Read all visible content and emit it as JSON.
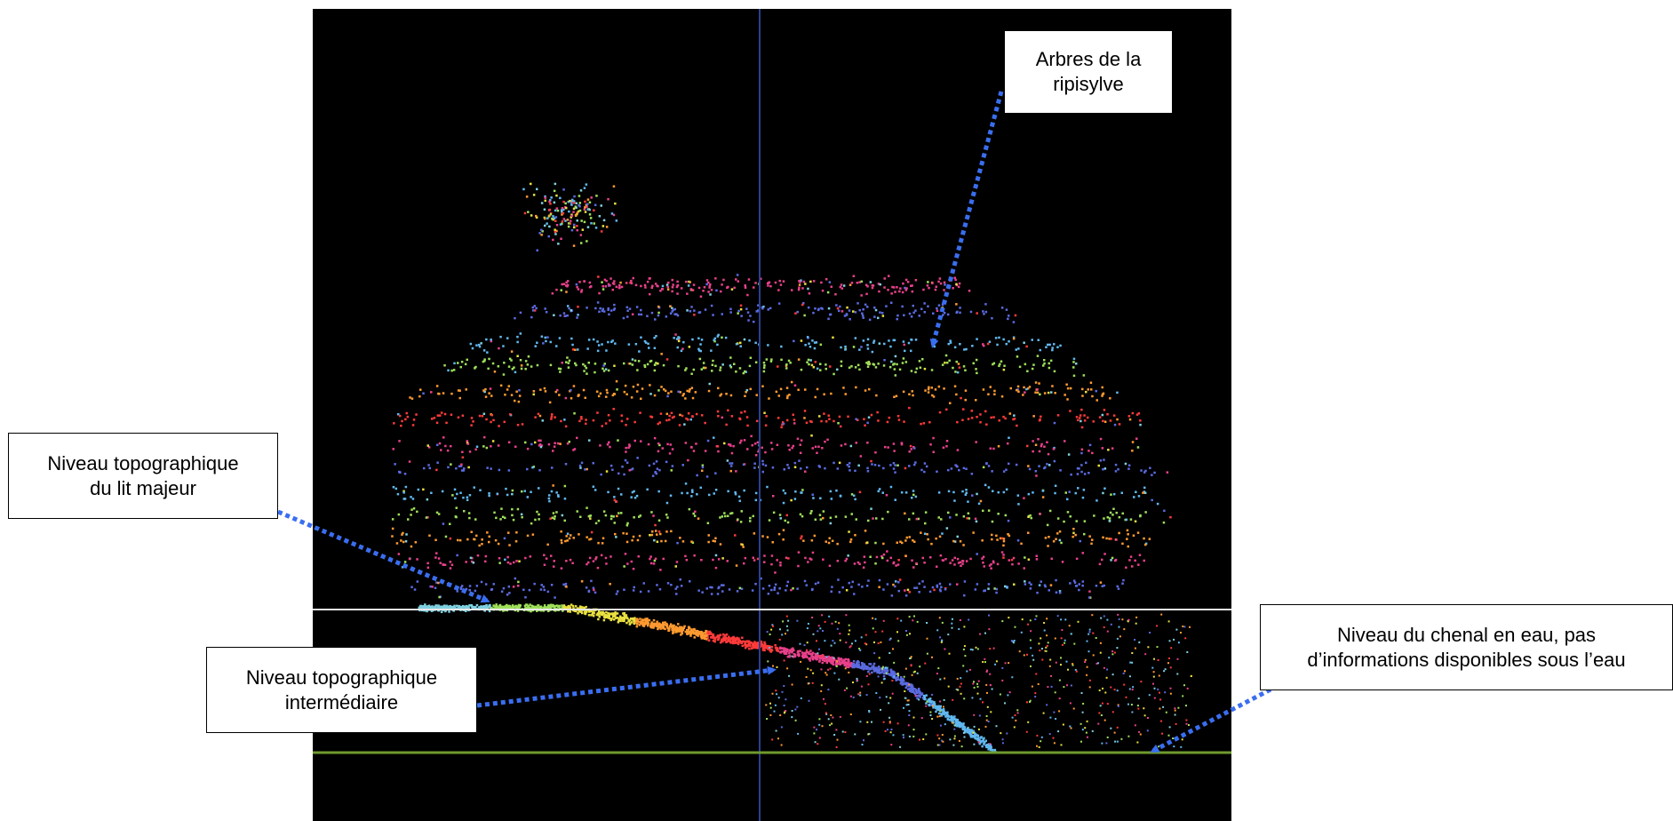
{
  "labels": {
    "trees": {
      "line1": "Arbres de la",
      "line2": "ripisylve"
    },
    "major_bed": {
      "line1": "Niveau topographique",
      "line2": "du lit majeur"
    },
    "intermediate": {
      "line1": "Niveau topographique",
      "line2": "intermédiaire"
    },
    "channel": {
      "line1": "Niveau du chenal en eau, pas",
      "line2": "d’informations disponibles sous l’eau"
    }
  },
  "colors": {
    "background_panel": "#000000",
    "vertical_axis": "#2a3f8f",
    "upper_level_line": "#e8e8e8",
    "channel_level_line": "#6f9a2e",
    "arrow": "#3a6ef0",
    "palette": [
      "#7fd0e0",
      "#9fe05a",
      "#e8e040",
      "#ff9a30",
      "#ff3a3a",
      "#e8408a",
      "#5a6ae0",
      "#60b8f0"
    ]
  }
}
